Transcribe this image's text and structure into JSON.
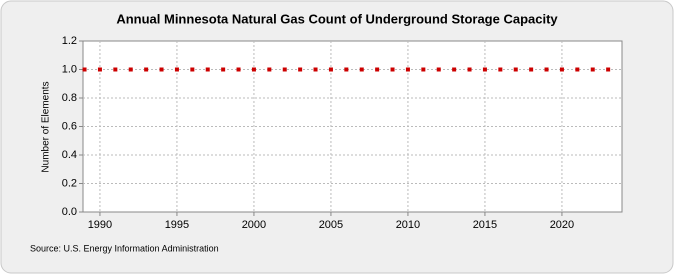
{
  "chart_data": {
    "type": "scatter",
    "title": "Annual Minnesota Natural Gas Count of Underground Storage Capacity",
    "y_label": "Number of Elements",
    "source": "Source: U.S. Energy Information Administration",
    "series": [
      {
        "color": "#cc0000",
        "x": [
          1989,
          1990,
          1991,
          1992,
          1993,
          1994,
          1995,
          1996,
          1997,
          1998,
          1999,
          2000,
          2001,
          2002,
          2003,
          2004,
          2005,
          2006,
          2007,
          2008,
          2009,
          2010,
          2011,
          2012,
          2013,
          2014,
          2015,
          2016,
          2017,
          2018,
          2019,
          2020,
          2021,
          2022,
          2023
        ],
        "values": [
          1,
          1,
          1,
          1,
          1,
          1,
          1,
          1,
          1,
          1,
          1,
          1,
          1,
          1,
          1,
          1,
          1,
          1,
          1,
          1,
          1,
          1,
          1,
          1,
          1,
          1,
          1,
          1,
          1,
          1,
          1,
          1,
          1,
          1,
          1
        ]
      }
    ],
    "xlim": [
      1988.9,
      2023.9
    ],
    "xticks": [
      1990,
      1995,
      2000,
      2005,
      2010,
      2015,
      2020
    ],
    "ylim": [
      0,
      1.2
    ],
    "yticks": [
      {
        "value": 0,
        "label": "0.0"
      },
      {
        "value": 0.2,
        "label": "0.2"
      },
      {
        "value": 0.4,
        "label": "0.4"
      },
      {
        "value": 0.6,
        "label": "0.6"
      },
      {
        "value": 0.8,
        "label": "0.8"
      },
      {
        "value": 1,
        "label": "1.0"
      },
      {
        "value": 1.2,
        "label": "1.2"
      }
    ],
    "grid": true
  }
}
